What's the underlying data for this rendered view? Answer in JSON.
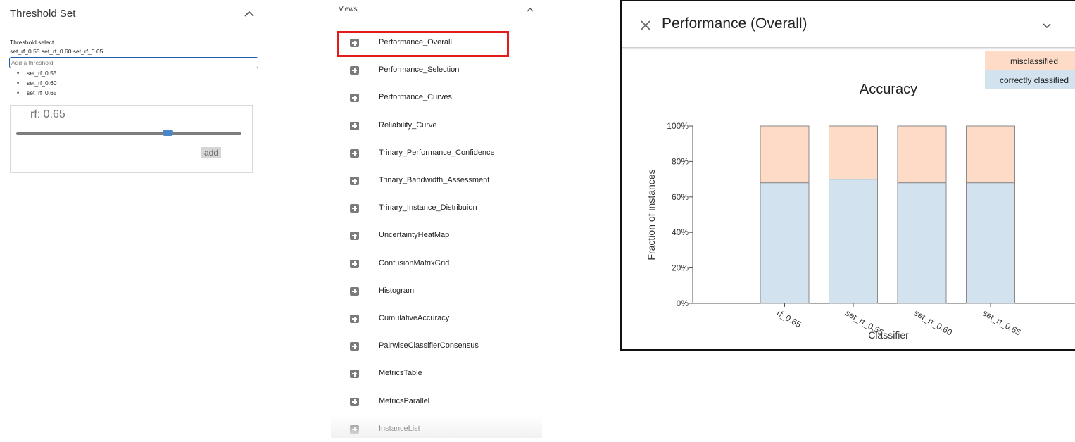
{
  "threshold_panel": {
    "title": "Threshold Set",
    "select_label": "Threshold select",
    "selected_summary": "set_rf_0.55 set_rf_0.60 set_rf_0.65",
    "input_placeholder": "Add a threshold",
    "items": [
      "set_rf_0.55",
      "set_rf_0.60",
      "set_rf_0.65"
    ],
    "slider": {
      "label": "rf: 0.65",
      "value_fraction": 0.67,
      "accent": "#4a86c8"
    },
    "add_label": "add"
  },
  "views_panel": {
    "title": "Views",
    "items": [
      {
        "label": "Performance_Overall",
        "icon": "plus-square-icon",
        "highlighted": true
      },
      {
        "label": "Performance_Selection",
        "icon": "plus-square-icon"
      },
      {
        "label": "Performance_Curves",
        "icon": "plus-square-icon"
      },
      {
        "label": "Reliability_Curve",
        "icon": "plus-square-icon"
      },
      {
        "label": "Trinary_Performance_Confidence",
        "icon": "plus-square-icon"
      },
      {
        "label": "Trinary_Bandwidth_Assessment",
        "icon": "plus-square-icon"
      },
      {
        "label": "Trinary_Instance_Distribuion",
        "icon": "plus-square-icon"
      },
      {
        "label": "UncertaintyHeatMap",
        "icon": "plus-square-icon"
      },
      {
        "label": "ConfusionMatrixGrid",
        "icon": "plus-square-icon"
      },
      {
        "label": "Histogram",
        "icon": "plus-square-icon"
      },
      {
        "label": "CumulativeAccuracy",
        "icon": "plus-square-icon"
      },
      {
        "label": "PairwiseClassifierConsensus",
        "icon": "plus-square-icon"
      },
      {
        "label": "MetricsTable",
        "icon": "plus-square-icon"
      },
      {
        "label": "MetricsParallel",
        "icon": "plus-square-icon"
      },
      {
        "label": "InstanceList",
        "icon": "plus-square-icon"
      }
    ],
    "highlight_color": "#e31b1b"
  },
  "performance_card": {
    "title": "Performance (Overall)"
  },
  "chart_data": {
    "type": "bar",
    "stacked": true,
    "title": "Accuracy",
    "xlabel": "Classifier",
    "ylabel": "Fraction of instances",
    "ylim": [
      0,
      100
    ],
    "yticks": [
      "0%",
      "20%",
      "40%",
      "60%",
      "80%",
      "100%"
    ],
    "categories": [
      "rf_0.65",
      "set_rf_0.55",
      "set_rf_0.60",
      "set_rf_0.65"
    ],
    "series": [
      {
        "name": "correctly classified",
        "color": "#d2e3ef",
        "values": [
          68,
          70,
          68,
          68
        ]
      },
      {
        "name": "misclassified",
        "color": "#fddbc7",
        "values": [
          32,
          30,
          32,
          32
        ]
      }
    ],
    "legend": "top-right",
    "grid": false
  }
}
